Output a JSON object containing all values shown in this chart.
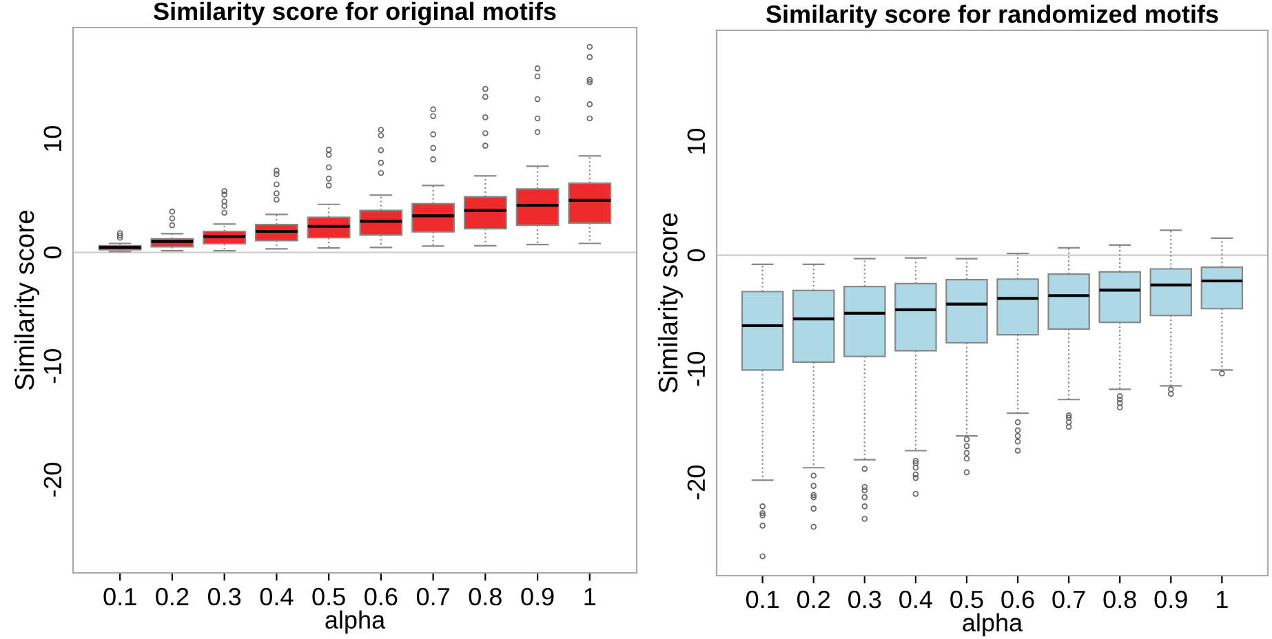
{
  "chart_data": [
    {
      "type": "box",
      "title": "Similarity score for original motifs",
      "xlabel": "alpha",
      "ylabel": "Similarity score",
      "categories": [
        "0.1",
        "0.2",
        "0.3",
        "0.4",
        "0.5",
        "0.6",
        "0.7",
        "0.8",
        "0.9",
        "1"
      ],
      "ylim": [
        -28.2,
        19.8
      ],
      "yticks": [
        -20,
        -10,
        0,
        10
      ],
      "grid": false,
      "ref_lines": [
        {
          "axis": "y",
          "value": 0,
          "color": "#cccccc"
        }
      ],
      "series": [
        {
          "color": "#ee2a2a",
          "boxes": [
            {
              "low": 0.08,
              "q1": 0.24,
              "median": 0.44,
              "q3": 0.6,
              "high": 0.8,
              "outliers": [
                1.3,
                1.5,
                1.7
              ]
            },
            {
              "low": 0.16,
              "q1": 0.5,
              "median": 0.97,
              "q3": 1.2,
              "high": 1.65,
              "outliers": [
                2.4,
                3.0,
                3.6
              ]
            },
            {
              "low": 0.16,
              "q1": 0.77,
              "median": 1.41,
              "q3": 1.86,
              "high": 2.5,
              "outliers": [
                3.5,
                4.1,
                4.5,
                5.1,
                5.4
              ]
            },
            {
              "low": 0.32,
              "q1": 1.05,
              "median": 1.86,
              "q3": 2.46,
              "high": 3.35,
              "outliers": [
                4.65,
                5.2,
                6.0,
                6.9,
                7.2
              ]
            },
            {
              "low": 0.4,
              "q1": 1.3,
              "median": 2.3,
              "q3": 3.1,
              "high": 4.24,
              "outliers": [
                5.9,
                6.5,
                7.5,
                8.6,
                9.05
              ]
            },
            {
              "low": 0.44,
              "q1": 1.54,
              "median": 2.75,
              "q3": 3.7,
              "high": 5.05,
              "outliers": [
                7.0,
                7.9,
                9.0,
                10.3,
                10.8
              ]
            },
            {
              "low": 0.57,
              "q1": 1.82,
              "median": 3.23,
              "q3": 4.3,
              "high": 5.9,
              "outliers": [
                8.2,
                9.2,
                10.4,
                12.0,
                12.6
              ]
            },
            {
              "low": 0.6,
              "q1": 2.1,
              "median": 3.7,
              "q3": 4.9,
              "high": 6.75,
              "outliers": [
                9.4,
                10.5,
                11.9,
                13.7,
                14.4
              ]
            },
            {
              "low": 0.7,
              "q1": 2.4,
              "median": 4.16,
              "q3": 5.6,
              "high": 7.6,
              "outliers": [
                10.6,
                11.8,
                13.5,
                15.5,
                16.2
              ]
            },
            {
              "low": 0.8,
              "q1": 2.6,
              "median": 4.6,
              "q3": 6.1,
              "high": 8.5,
              "outliers": [
                11.8,
                13.05,
                15.0,
                15.2,
                17.2,
                18.1
              ]
            }
          ]
        }
      ]
    },
    {
      "type": "box",
      "title": "Similarity score for randomized motifs",
      "xlabel": "alpha",
      "ylabel": "Similarity score",
      "categories": [
        "0.1",
        "0.2",
        "0.3",
        "0.4",
        "0.5",
        "0.6",
        "0.7",
        "0.8",
        "0.9",
        "1"
      ],
      "ylim": [
        -28.2,
        19.8
      ],
      "yticks": [
        -20,
        -10,
        0,
        10
      ],
      "grid": false,
      "ref_lines": [
        {
          "axis": "y",
          "value": 0,
          "color": "#cccccc"
        }
      ],
      "series": [
        {
          "color": "#add8e6",
          "boxes": [
            {
              "low": -19.8,
              "q1": -10.1,
              "median": -6.2,
              "q3": -3.2,
              "high": -0.8,
              "outliers": [
                -22.1,
                -22.7,
                -22.9,
                -23.8,
                -26.5
              ]
            },
            {
              "low": -18.7,
              "q1": -9.4,
              "median": -5.6,
              "q3": -3.1,
              "high": -0.8,
              "outliers": [
                -19.4,
                -20.3,
                -21.1,
                -21.3,
                -22.3,
                -23.9
              ]
            },
            {
              "low": -18.0,
              "q1": -8.9,
              "median": -5.1,
              "q3": -2.75,
              "high": -0.3,
              "outliers": [
                -18.8,
                -20.4,
                -20.7,
                -21.3,
                -22.1,
                -23.2
              ]
            },
            {
              "low": -17.2,
              "q1": -8.4,
              "median": -4.8,
              "q3": -2.5,
              "high": -0.24,
              "outliers": [
                -18.1,
                -18.3,
                -18.7,
                -19.3,
                -19.6,
                -21.0
              ]
            },
            {
              "low": -15.9,
              "q1": -7.7,
              "median": -4.3,
              "q3": -2.15,
              "high": -0.3,
              "outliers": [
                -16.2,
                -16.8,
                -17.4,
                -17.9,
                -19.1
              ]
            },
            {
              "low": -13.9,
              "q1": -7.0,
              "median": -3.8,
              "q3": -2.1,
              "high": 0.16,
              "outliers": [
                -14.7,
                -15.4,
                -15.9,
                -16.4,
                -17.2
              ]
            },
            {
              "low": -12.7,
              "q1": -6.5,
              "median": -3.55,
              "q3": -1.66,
              "high": 0.65,
              "outliers": [
                -14.1,
                -14.3,
                -14.7,
                -15.1
              ]
            },
            {
              "low": -11.8,
              "q1": -5.9,
              "median": -3.07,
              "q3": -1.46,
              "high": 0.9,
              "outliers": [
                -12.4,
                -12.7,
                -13.0,
                -13.4
              ]
            },
            {
              "low": -11.5,
              "q1": -5.3,
              "median": -2.62,
              "q3": -1.2,
              "high": 2.2,
              "outliers": [
                -11.8,
                -12.2
              ]
            },
            {
              "low": -10.1,
              "q1": -4.7,
              "median": -2.26,
              "q3": -1.05,
              "high": 1.5,
              "outliers": [
                -10.4
              ]
            }
          ]
        }
      ]
    }
  ]
}
